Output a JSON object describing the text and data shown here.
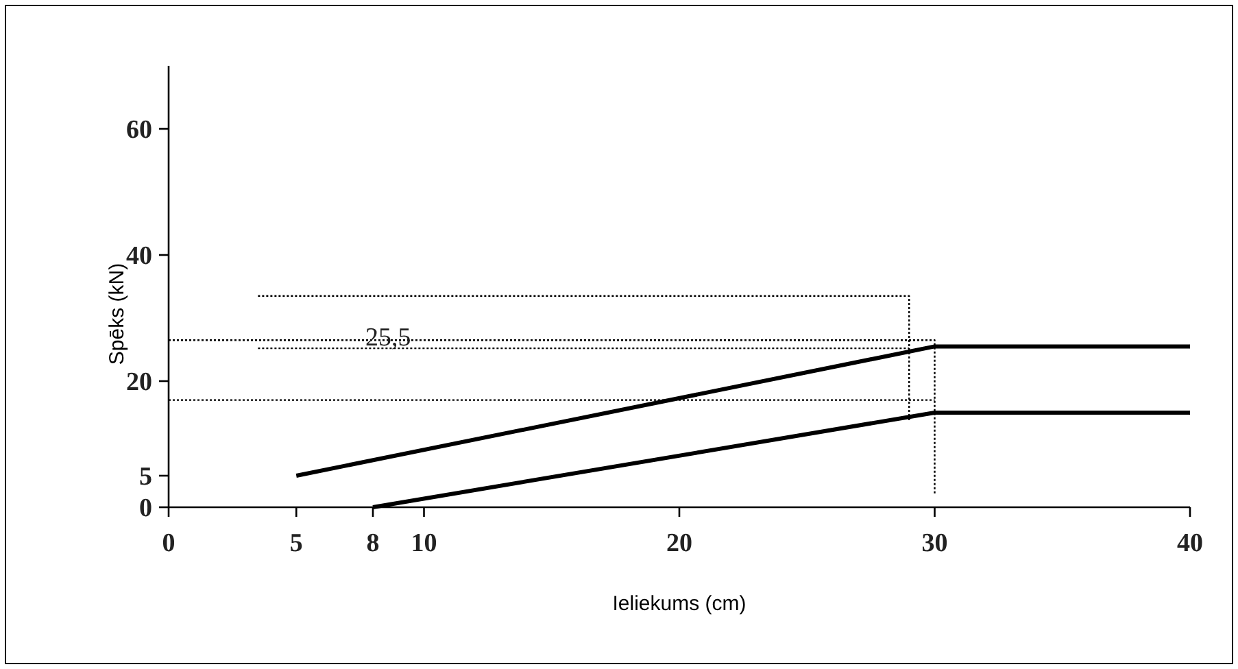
{
  "chart_data": {
    "type": "line",
    "xlabel": "Ieliekums (cm)",
    "ylabel": "Spēks (kN)",
    "xlim": [
      0,
      40
    ],
    "ylim": [
      0,
      70
    ],
    "xticks": [
      0,
      5,
      8,
      10,
      20,
      30,
      40
    ],
    "yticks": [
      0,
      5,
      20,
      40,
      60
    ],
    "grid": false,
    "marker": "none",
    "series": [
      {
        "color": "#000000",
        "x": [
          5,
          30,
          40
        ],
        "values": [
          5,
          25.5,
          25.5
        ],
        "line_style": "solid"
      },
      {
        "color": "#000000",
        "x": [
          8,
          30,
          40
        ],
        "values": [
          0,
          15,
          15
        ],
        "line_style": "solid"
      },
      {
        "color": "#000000",
        "x": [
          3.5,
          29,
          29
        ],
        "values": [
          33.5,
          33.5,
          13.5
        ],
        "line_style": "dotted"
      },
      {
        "color": "#000000",
        "x": [
          0,
          30,
          30
        ],
        "values": [
          26.5,
          26.5,
          2
        ],
        "line_style": "dotted"
      },
      {
        "color": "#000000",
        "x": [
          3.5,
          29
        ],
        "values": [
          25.2,
          25.2
        ],
        "line_style": "dotted"
      },
      {
        "color": "#000000",
        "x": [
          0,
          30
        ],
        "values": [
          17,
          17
        ],
        "line_style": "dotted"
      }
    ],
    "annotations": [
      {
        "text": "25,5",
        "x": 8.6,
        "y": 26.5
      }
    ]
  }
}
